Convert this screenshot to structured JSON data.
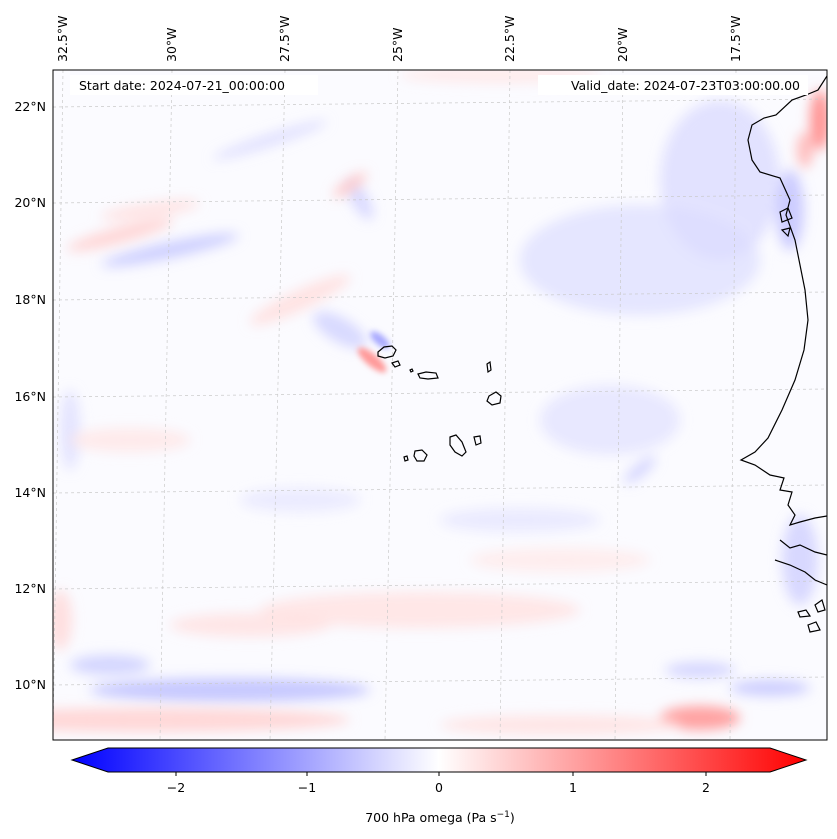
{
  "map": {
    "top_lon_labels": [
      "32.5°W",
      "30°W",
      "27.5°W",
      "25°W",
      "22.5°W",
      "20°W",
      "17.5°W"
    ],
    "left_lat_labels": [
      "22°N",
      "20°N",
      "18°N",
      "16°N",
      "14°N",
      "12°N",
      "10°N"
    ],
    "start_date": "Start date: 2024-07-21_00:00:00",
    "valid_date": "Valid_date: 2024-07-23T03:00:00.00"
  },
  "colorbar": {
    "ticks": [
      "−2",
      "−1",
      "0",
      "1",
      "2"
    ],
    "label_main": "700 hPa omega (Pa s",
    "label_exp": "−1",
    "label_close": ")",
    "min_color": "#0000ff",
    "mid_color": "#ffffff",
    "max_color": "#ff0000"
  }
}
